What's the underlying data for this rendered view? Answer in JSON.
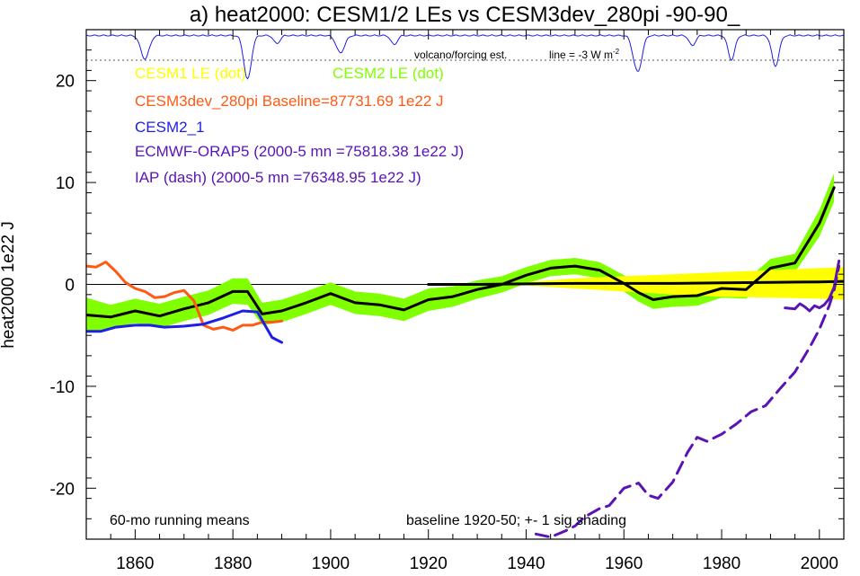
{
  "chart_data": {
    "type": "line",
    "title": "a) heat2000: CESM1/2 LEs vs CESM3dev_280pi -90-90_",
    "xlabel": "",
    "ylabel": "heat2000 1e22 J",
    "xlim": [
      1850,
      2005
    ],
    "ylim": [
      -25,
      25
    ],
    "xticks": [
      1860,
      1880,
      1900,
      1920,
      1940,
      1960,
      1980,
      2000
    ],
    "yticks": [
      -20,
      -10,
      0,
      10,
      20
    ],
    "grid": false,
    "zero_line": 0,
    "volcano_line_y": 22,
    "colors": {
      "cesm1": "#ffff00",
      "cesm2": "#80ff00",
      "cesm3": "#ff5a14",
      "cesm2_1": "#1e1ee6",
      "orap5": "#5a14b4",
      "iap": "#5a14b4",
      "ensemble_mean": "#000000",
      "volcano": "#1e1ee6"
    },
    "annotations": {
      "volcano_label": "volcano/forcing est.",
      "line_label": "line = -3 W m",
      "line_label_sup": "-2",
      "running_mean": "60-mo running means",
      "baseline": "baseline 1920-50; +- 1 sig shading"
    },
    "legend": [
      {
        "key": "cesm1",
        "label": "CESM1 LE (dot)"
      },
      {
        "key": "cesm2",
        "label": "CESM2 LE (dot)"
      },
      {
        "key": "cesm3",
        "label": "CESM3dev_280pi Baseline=87731.69 1e22 J"
      },
      {
        "key": "cesm2_1",
        "label": "CESM2_1"
      },
      {
        "key": "orap5",
        "label": "ECMWF-ORAP5 (2000-5 mn =75818.38 1e22 J)"
      },
      {
        "key": "iap",
        "label": "IAP (dash) (2000-5 mn =76348.95 1e22 J)"
      }
    ],
    "series": [
      {
        "name": "CESM2 LE (dot)",
        "kind": "band",
        "x": [
          1850,
          1855,
          1860,
          1865,
          1870,
          1875,
          1880,
          1883,
          1886,
          1890,
          1895,
          1900,
          1905,
          1910,
          1915,
          1920,
          1925,
          1930,
          1935,
          1940,
          1945,
          1950,
          1955,
          1960,
          1963,
          1966,
          1970,
          1975,
          1980,
          1985,
          1990,
          1995,
          2000,
          2003
        ],
        "mean": [
          -3.0,
          -3.2,
          -2.6,
          -3.1,
          -2.4,
          -1.8,
          -0.7,
          -0.7,
          -2.9,
          -2.6,
          -1.8,
          -0.9,
          -1.8,
          -2.0,
          -2.5,
          -1.5,
          -1.2,
          -0.5,
          0.0,
          0.9,
          1.6,
          1.8,
          1.4,
          0.1,
          -0.8,
          -1.5,
          -1.2,
          -1.1,
          -0.4,
          -0.5,
          1.6,
          2.1,
          6.0,
          9.5
        ],
        "lower": [
          -4.7,
          -4.4,
          -3.8,
          -4.3,
          -3.6,
          -3.0,
          -1.9,
          -2.0,
          -4.0,
          -3.7,
          -2.9,
          -2.0,
          -2.9,
          -3.1,
          -3.6,
          -2.6,
          -2.2,
          -1.4,
          -0.8,
          0.1,
          0.8,
          1.0,
          0.6,
          -0.7,
          -1.7,
          -2.4,
          -2.2,
          -2.1,
          -1.3,
          -1.4,
          0.7,
          1.2,
          4.7,
          8.1
        ],
        "upper": [
          -1.3,
          -2.0,
          -1.4,
          -1.9,
          -1.2,
          -0.6,
          0.6,
          0.6,
          -1.8,
          -1.5,
          -0.7,
          0.2,
          -0.7,
          -0.9,
          -1.4,
          -0.4,
          -0.2,
          0.4,
          0.8,
          1.7,
          2.4,
          2.6,
          2.2,
          0.9,
          0.1,
          -0.6,
          -0.2,
          -0.1,
          0.5,
          0.4,
          2.5,
          3.0,
          7.3,
          10.9
        ]
      },
      {
        "name": "CESM1 LE (dot)",
        "kind": "band",
        "x": [
          1920,
          1930,
          1940,
          1950,
          1960,
          1970,
          1980,
          1990,
          2000,
          2005
        ],
        "mean": [
          0.0,
          0.0,
          0.05,
          0.1,
          0.1,
          0.1,
          0.15,
          0.2,
          0.25,
          0.3
        ],
        "lower": [
          0.0,
          -0.05,
          -0.1,
          -0.4,
          -0.7,
          -1.0,
          -1.2,
          -1.3,
          -1.4,
          -1.5
        ],
        "upper": [
          0.0,
          0.05,
          0.2,
          0.6,
          0.8,
          1.0,
          1.2,
          1.4,
          1.6,
          1.7
        ]
      },
      {
        "name": "CESM3dev_280pi Baseline=87731.69 1e22 J",
        "kind": "line",
        "x": [
          1850,
          1852,
          1854,
          1856,
          1858,
          1860,
          1862,
          1864,
          1866,
          1868,
          1870,
          1872,
          1874,
          1876,
          1878,
          1880,
          1882,
          1884,
          1886,
          1888,
          1890
        ],
        "y": [
          1.8,
          1.7,
          2.2,
          1.3,
          0.2,
          -0.4,
          -0.7,
          -1.3,
          -1.2,
          -0.8,
          -0.6,
          -1.6,
          -4.0,
          -4.4,
          -4.2,
          -4.5,
          -4.0,
          -4.0,
          -3.7,
          -3.7,
          -3.6
        ]
      },
      {
        "name": "CESM2_1",
        "kind": "line",
        "x": [
          1850,
          1853,
          1856,
          1860,
          1863,
          1866,
          1870,
          1874,
          1878,
          1882,
          1885,
          1888,
          1890
        ],
        "y": [
          -4.6,
          -4.6,
          -4.2,
          -4.0,
          -4.0,
          -4.2,
          -4.1,
          -3.9,
          -3.3,
          -2.6,
          -2.7,
          -5.2,
          -5.7
        ]
      },
      {
        "name": "ECMWF-ORAP5 (2000-5 mn =75818.38 1e22 J)",
        "kind": "line",
        "x": [
          1993,
          1995,
          1996,
          1997,
          1998,
          1999,
          2000,
          2001,
          2002,
          2003,
          2004
        ],
        "y": [
          -2.3,
          -2.4,
          -1.9,
          -2.2,
          -2.6,
          -2.1,
          -2.3,
          -2.0,
          -1.4,
          -0.3,
          2.3
        ]
      },
      {
        "name": "IAP (dash) (2000-5 mn =76348.95 1e22 J)",
        "kind": "line",
        "dash": true,
        "x": [
          1942,
          1945,
          1948,
          1950,
          1952,
          1955,
          1957,
          1960,
          1963,
          1965,
          1967,
          1970,
          1973,
          1975,
          1977,
          1980,
          1983,
          1986,
          1989,
          1992,
          1995,
          1998,
          2000,
          2002,
          2003,
          2004
        ],
        "y": [
          -24.5,
          -24.8,
          -24.2,
          -23.7,
          -22.8,
          -22.0,
          -21.7,
          -20.0,
          -19.5,
          -20.7,
          -21.0,
          -19.4,
          -16.5,
          -15.0,
          -15.4,
          -14.7,
          -13.7,
          -12.5,
          -11.9,
          -10.2,
          -8.6,
          -6.2,
          -4.4,
          -2.1,
          -0.6,
          1.8
        ]
      },
      {
        "name": "volcano",
        "kind": "volcano",
        "events": [
          {
            "x": 1862,
            "depth": 2.3,
            "w": 2.0
          },
          {
            "x": 1883,
            "depth": 4.3,
            "w": 1.8
          },
          {
            "x": 1889,
            "depth": 0.8,
            "w": 1.5
          },
          {
            "x": 1902,
            "depth": 1.7,
            "w": 2.0
          },
          {
            "x": 1913,
            "depth": 0.9,
            "w": 1.5
          },
          {
            "x": 1962,
            "depth": 1.0,
            "w": 1.5
          },
          {
            "x": 1963,
            "depth": 3.2,
            "w": 1.8
          },
          {
            "x": 1974,
            "depth": 1.0,
            "w": 1.5
          },
          {
            "x": 1982,
            "depth": 2.4,
            "w": 1.6
          },
          {
            "x": 1991,
            "depth": 3.0,
            "w": 1.7
          }
        ]
      }
    ]
  }
}
